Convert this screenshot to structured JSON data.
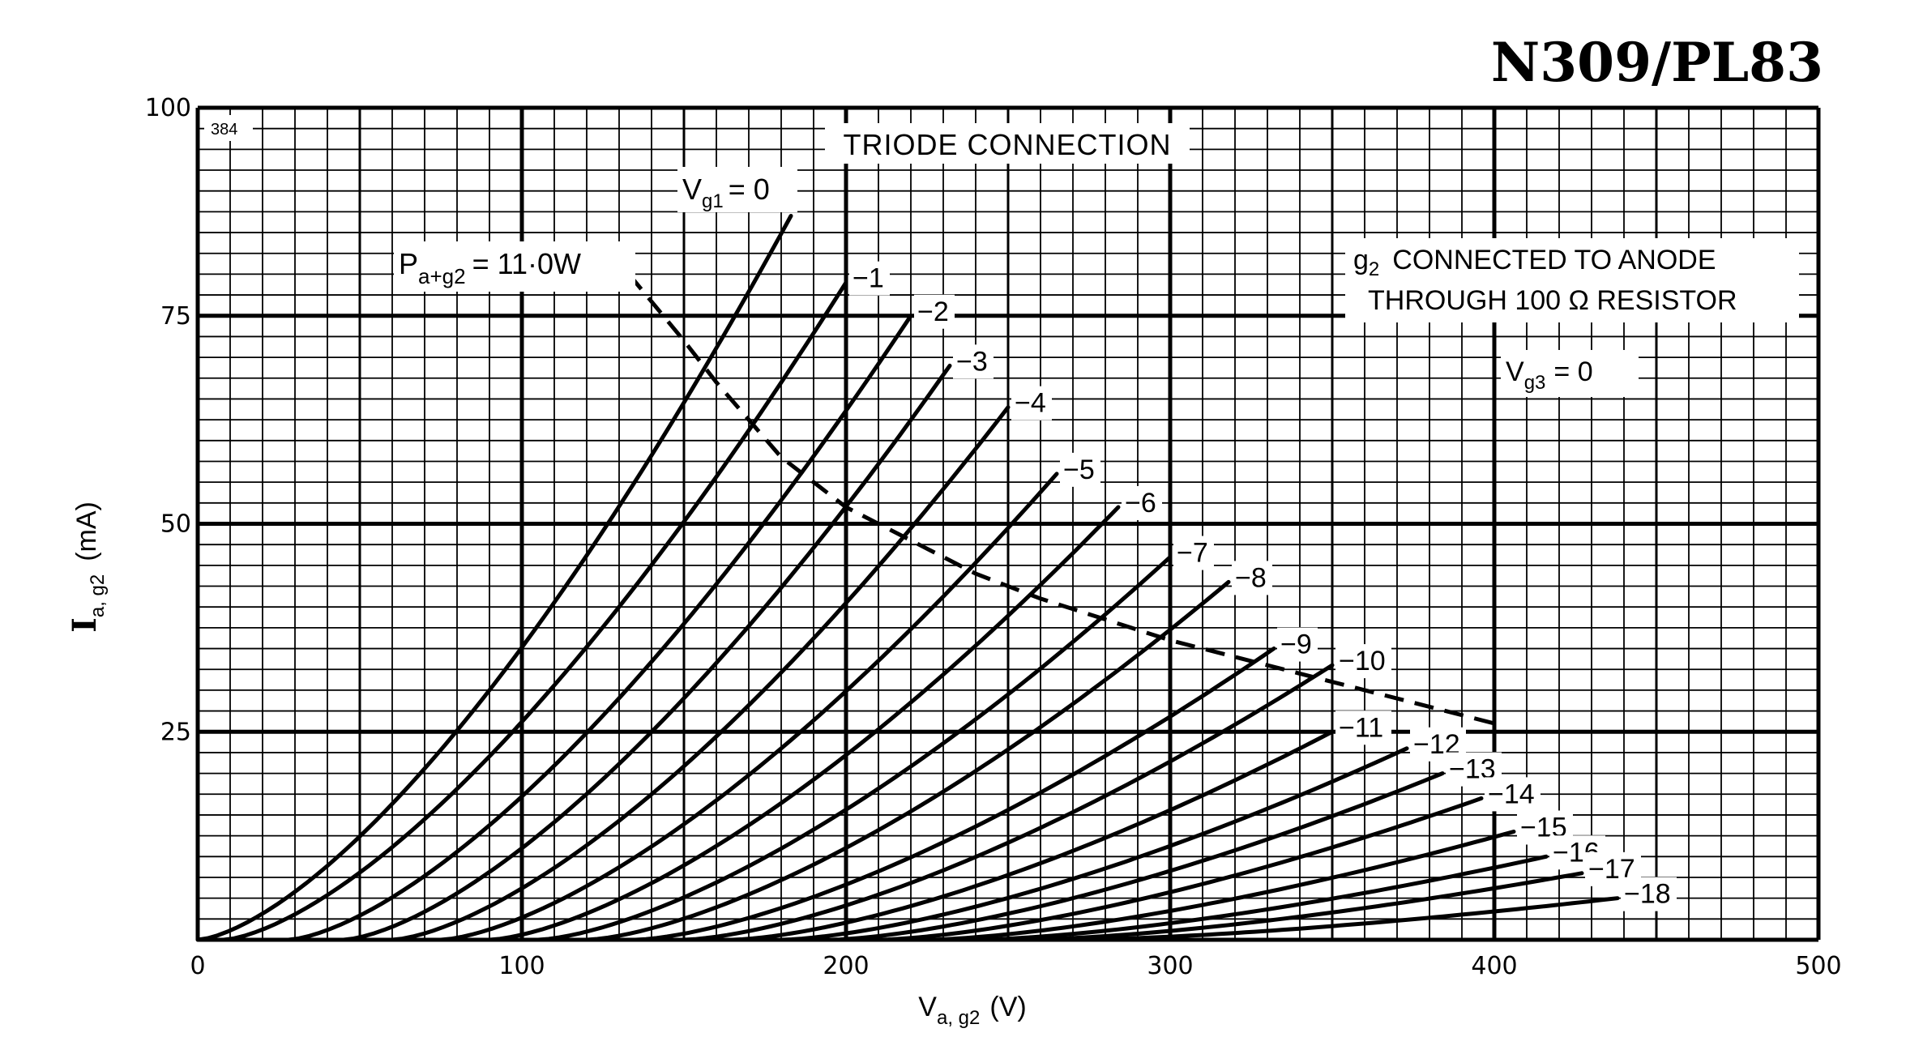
{
  "chart_data": {
    "type": "line",
    "title": "N309/PL83",
    "subtitle": "TRIODE CONNECTION",
    "chart_id": "384",
    "xlabel": "V",
    "xlabel_sub": "a, g2",
    "xlabel_unit": "(V)",
    "ylabel": "I",
    "ylabel_sub": "a, g2",
    "ylabel_unit": "(mA)",
    "xlim": [
      0,
      500
    ],
    "ylim": [
      0,
      100
    ],
    "xticks": [
      "0",
      "100",
      "200",
      "300",
      "400",
      "500"
    ],
    "yticks": [
      "25",
      "50",
      "75",
      "100"
    ],
    "grid": true,
    "annotations": {
      "g2_line1": "g",
      "g2_line1_sub": "2",
      "g2_line1_rest": "CONNECTED TO ANODE",
      "g2_line2": "THROUGH 100 Ω RESISTOR",
      "vg3_main": "V",
      "vg3_sub": "g3",
      "vg3_rest": "= 0",
      "pmax_main": "P",
      "pmax_sub": "a+g2",
      "pmax_rest": "= 11·0W",
      "vg1_main": "V",
      "vg1_sub": "g1",
      "vg1_rest": "= 0"
    },
    "dissipation_curve": {
      "name": "Pa+g2 = 11·0W",
      "style": "dashed",
      "points": [
        [
          133,
          80
        ],
        [
          150,
          72
        ],
        [
          160,
          67
        ],
        [
          180,
          58
        ],
        [
          200,
          52
        ],
        [
          220,
          48
        ],
        [
          240,
          44
        ],
        [
          260,
          41
        ],
        [
          300,
          36
        ],
        [
          340,
          32
        ],
        [
          380,
          28
        ],
        [
          400,
          26
        ]
      ]
    },
    "series": [
      {
        "name": "0",
        "label": "",
        "x0": 0,
        "x1": 183,
        "y1": 87
      },
      {
        "name": "-1",
        "label": "-1",
        "x0": 8,
        "x1": 200,
        "y1": 79
      },
      {
        "name": "-2",
        "label": "-2",
        "x0": 28,
        "x1": 220,
        "y1": 75
      },
      {
        "name": "-3",
        "label": "-3",
        "x0": 45,
        "x1": 232,
        "y1": 69
      },
      {
        "name": "-4",
        "label": "-4",
        "x0": 60,
        "x1": 250,
        "y1": 64
      },
      {
        "name": "-5",
        "label": "-5",
        "x0": 75,
        "x1": 265,
        "y1": 56
      },
      {
        "name": "-6",
        "label": "-6",
        "x0": 90,
        "x1": 284,
        "y1": 52
      },
      {
        "name": "-7",
        "label": "-7",
        "x0": 105,
        "x1": 300,
        "y1": 46
      },
      {
        "name": "-8",
        "label": "-8",
        "x0": 120,
        "x1": 318,
        "y1": 43
      },
      {
        "name": "-9",
        "label": "-9",
        "x0": 135,
        "x1": 332,
        "y1": 35
      },
      {
        "name": "-10",
        "label": "-10",
        "x0": 150,
        "x1": 350,
        "y1": 33
      },
      {
        "name": "-11",
        "label": "-11",
        "x0": 165,
        "x1": 350,
        "y1": 25
      },
      {
        "name": "-12",
        "label": "-12",
        "x0": 180,
        "x1": 373,
        "y1": 23
      },
      {
        "name": "-13",
        "label": "-13",
        "x0": 195,
        "x1": 384,
        "y1": 20
      },
      {
        "name": "-14",
        "label": "-14",
        "x0": 210,
        "x1": 396,
        "y1": 17
      },
      {
        "name": "-15",
        "label": "-15",
        "x0": 225,
        "x1": 406,
        "y1": 13
      },
      {
        "name": "-16",
        "label": "-16",
        "x0": 240,
        "x1": 416,
        "y1": 10
      },
      {
        "name": "-17",
        "label": "-17",
        "x0": 255,
        "x1": 427,
        "y1": 8
      },
      {
        "name": "-18",
        "label": "-18",
        "x0": 270,
        "x1": 438,
        "y1": 5
      }
    ]
  }
}
